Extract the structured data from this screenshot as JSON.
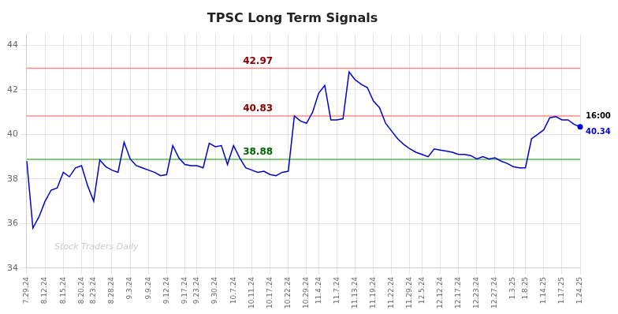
{
  "chart_data": {
    "type": "line",
    "title": "TPSC Long Term Signals",
    "categories": [
      "7.29.24",
      null,
      null,
      "8.12.24",
      null,
      null,
      "8.15.24",
      null,
      null,
      "8.20.24",
      null,
      "8.23.24",
      null,
      null,
      "8.28.24",
      null,
      null,
      "9.3.24",
      null,
      null,
      "9.9.24",
      null,
      null,
      "9.12.24",
      null,
      null,
      "9.17.24",
      null,
      "9.23.24",
      null,
      null,
      "9.30.24",
      null,
      null,
      "10.7.24",
      null,
      null,
      "10.11.24",
      null,
      null,
      "10.17.24",
      null,
      null,
      "10.22.24",
      null,
      null,
      "10.29.24",
      null,
      "11.4.24",
      null,
      null,
      "11.7.24",
      null,
      null,
      "11.13.24",
      null,
      null,
      "11.19.24",
      null,
      null,
      "11.22.24",
      null,
      null,
      "11.29.24",
      null,
      "12.5.24",
      null,
      null,
      "12.12.24",
      null,
      null,
      "12.17.24",
      null,
      null,
      "12.23.24",
      null,
      null,
      "12.27.24",
      null,
      null,
      "1.3.25",
      null,
      "1.8.25",
      null,
      null,
      "1.14.25",
      null,
      null,
      "1.17.25",
      null,
      null,
      "1.24.25"
    ],
    "values": [
      38.8,
      35.8,
      36.3,
      37.0,
      37.5,
      37.6,
      38.3,
      38.1,
      38.5,
      38.6,
      37.7,
      37.0,
      38.85,
      38.55,
      38.4,
      38.3,
      39.65,
      38.9,
      38.6,
      38.5,
      38.4,
      38.3,
      38.15,
      38.2,
      39.5,
      38.95,
      38.65,
      38.6,
      38.6,
      38.5,
      39.6,
      39.45,
      39.5,
      38.65,
      39.5,
      38.95,
      38.5,
      38.4,
      38.3,
      38.35,
      38.2,
      38.15,
      38.3,
      38.35,
      40.83,
      40.6,
      40.5,
      41.0,
      41.85,
      42.2,
      40.65,
      40.65,
      40.7,
      42.8,
      42.45,
      42.25,
      42.1,
      41.5,
      41.2,
      40.5,
      40.15,
      39.8,
      39.55,
      39.35,
      39.2,
      39.1,
      39.0,
      39.35,
      39.3,
      39.25,
      39.2,
      39.1,
      39.1,
      39.05,
      38.9,
      39.0,
      38.9,
      38.95,
      38.8,
      38.7,
      38.55,
      38.5,
      38.5,
      39.8,
      40.0,
      40.2,
      40.75,
      40.8,
      40.65,
      40.65,
      40.45,
      40.34
    ],
    "color": "#0000cc",
    "ylim": [
      34,
      44.5
    ],
    "yticks": [
      34,
      36,
      38,
      40,
      42,
      44
    ],
    "grid": true,
    "reference_lines": [
      {
        "value": 42.97,
        "color": "#ff8888",
        "label": "42.97",
        "label_color": "#880000"
      },
      {
        "value": 40.83,
        "color": "#ff8888",
        "label": "40.83",
        "label_color": "#880000"
      },
      {
        "value": 38.88,
        "color": "#55bb55",
        "label": "38.88",
        "label_color": "#006600"
      }
    ],
    "last_point": {
      "label": "16:00",
      "value": 40.34
    },
    "watermark": "Stock Traders Daily"
  }
}
